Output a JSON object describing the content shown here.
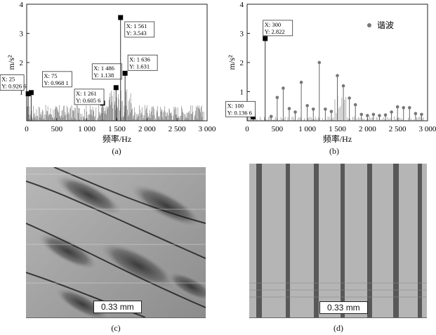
{
  "chart_data": [
    {
      "type": "line",
      "panel_label": "(a)",
      "xlabel": "频率/Hz",
      "ylabel": "m/s²",
      "xlim": [
        0,
        3000
      ],
      "ylim": [
        0,
        4
      ],
      "xticks": [
        "0",
        "500",
        "1 000",
        "1 500",
        "2 000",
        "2 500",
        "3 000"
      ],
      "yticks": [
        "1",
        "2",
        "3",
        "4"
      ],
      "markers": [
        {
          "x": 25,
          "y": 0.9266,
          "label": [
            "X: 25",
            "Y: 0.926 6"
          ]
        },
        {
          "x": 75,
          "y": 0.9681,
          "label": [
            "X: 75",
            "Y: 0.968 1"
          ]
        },
        {
          "x": 1261,
          "y": 0.6056,
          "label": [
            "X: 1 261",
            "Y: 0.605 6"
          ]
        },
        {
          "x": 1486,
          "y": 1.138,
          "label": [
            "X: 1 486",
            "Y: 1.138"
          ]
        },
        {
          "x": 1561,
          "y": 3.543,
          "label": [
            "X: 1 561",
            "Y: 3.543"
          ]
        },
        {
          "x": 1636,
          "y": 1.631,
          "label": [
            "X: 1 636",
            "Y: 1.631"
          ]
        }
      ]
    },
    {
      "type": "scatter",
      "panel_label": "(b)",
      "xlabel": "频率/Hz",
      "ylabel": "m/s²",
      "xlim": [
        0,
        3000
      ],
      "ylim": [
        0,
        4
      ],
      "xticks": [
        "0",
        "500",
        "1 000",
        "1 500",
        "2 000",
        "2 500",
        "3 000"
      ],
      "yticks": [
        "1",
        "2",
        "3",
        "4"
      ],
      "legend": "谐波",
      "legend_position": "top-right",
      "harmonics": [
        {
          "x": 400,
          "y": 0.15
        },
        {
          "x": 500,
          "y": 0.8
        },
        {
          "x": 600,
          "y": 1.12
        },
        {
          "x": 700,
          "y": 0.42
        },
        {
          "x": 800,
          "y": 0.3
        },
        {
          "x": 900,
          "y": 1.32
        },
        {
          "x": 1000,
          "y": 0.52
        },
        {
          "x": 1100,
          "y": 0.4
        },
        {
          "x": 1200,
          "y": 2.0
        },
        {
          "x": 1300,
          "y": 0.4
        },
        {
          "x": 1400,
          "y": 0.32
        },
        {
          "x": 1500,
          "y": 1.55
        },
        {
          "x": 1600,
          "y": 1.2
        },
        {
          "x": 1700,
          "y": 0.78
        },
        {
          "x": 1800,
          "y": 0.55
        },
        {
          "x": 1900,
          "y": 0.22
        },
        {
          "x": 2000,
          "y": 0.18
        },
        {
          "x": 2100,
          "y": 0.22
        },
        {
          "x": 2200,
          "y": 0.18
        },
        {
          "x": 2300,
          "y": 0.2
        },
        {
          "x": 2400,
          "y": 0.3
        },
        {
          "x": 2500,
          "y": 0.48
        },
        {
          "x": 2600,
          "y": 0.45
        },
        {
          "x": 2700,
          "y": 0.45
        },
        {
          "x": 2800,
          "y": 0.25
        },
        {
          "x": 2900,
          "y": 0.22
        }
      ],
      "markers": [
        {
          "x": 100,
          "y": 0.1366,
          "label": [
            "X: 100",
            "Y: 0.136 6"
          ]
        },
        {
          "x": 300,
          "y": 2.822,
          "label": [
            "X: 300",
            "Y: 2.822"
          ]
        }
      ]
    }
  ],
  "images": [
    {
      "panel_label": "(c)",
      "scale_bar": "0.33 mm"
    },
    {
      "panel_label": "(d)",
      "scale_bar": "0.33 mm"
    }
  ]
}
